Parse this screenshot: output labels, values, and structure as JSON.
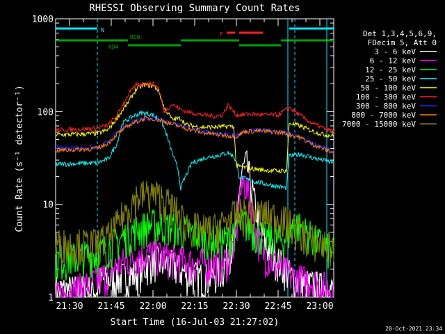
{
  "chart_data": {
    "type": "line",
    "title": "RHESSI Observing Summary Count Rates",
    "xlabel": "Start Time (16-Jul-03 21:27:02)",
    "ylabel": "Count Rate (s⁻¹ detector⁻¹)",
    "yscale": "log",
    "ylim": [
      1,
      1000
    ],
    "xlim_minutes": [
      -2,
      98
    ],
    "x_unit": "minutes after 21:27:02",
    "x_ticks": [
      {
        "min": 3,
        "label": "21:30"
      },
      {
        "min": 18,
        "label": "21:45"
      },
      {
        "min": 33,
        "label": "22:00"
      },
      {
        "min": 48,
        "label": "22:15"
      },
      {
        "min": 63,
        "label": "22:30"
      },
      {
        "min": 78,
        "label": "22:45"
      },
      {
        "min": 93,
        "label": "23:00"
      }
    ],
    "y_ticks": [
      {
        "v": 1,
        "label": "1"
      },
      {
        "v": 10,
        "label": "10"
      },
      {
        "v": 100,
        "label": "100"
      },
      {
        "v": 1000,
        "label": "1000"
      }
    ],
    "x_minor_step": 5,
    "footer_date": "20-Oct-2021 23:34",
    "legend_header": [
      "Det 1,3,4,5,6,9,",
      "FDecim 5, Att 0"
    ],
    "flags": [
      {
        "label": "N",
        "color": "#00e8ff",
        "level": 0,
        "segments": [
          [
            -2,
            13
          ],
          [
            82,
            98
          ]
        ]
      },
      {
        "label": "F",
        "color": "#ff2020",
        "level": 1,
        "segments": [
          [
            59.5,
            62.5
          ],
          [
            64,
            72.5
          ]
        ]
      },
      {
        "label": "RD0",
        "color": "#00a000",
        "level": 2,
        "segments": [
          [
            -2,
            24
          ],
          [
            43,
            64
          ],
          [
            79,
            98
          ]
        ]
      },
      {
        "label": "RD4",
        "color": "#00a000",
        "level": 3,
        "segments": [
          [
            24,
            43
          ],
          [
            64,
            79
          ]
        ]
      }
    ],
    "saa_lines_min": [
      13,
      84
    ],
    "orbit_edges_min": [
      81.5,
      95.5
    ],
    "series": [
      {
        "name": "3 - 6 keV",
        "color": "#ffffff",
        "points": [
          [
            -2,
            1.2
          ],
          [
            13,
            1.2
          ],
          [
            14,
            1.5
          ],
          [
            20,
            1.6
          ],
          [
            27,
            1.8
          ],
          [
            33,
            2.5
          ],
          [
            40,
            2.2
          ],
          [
            45,
            1.8
          ],
          [
            52,
            1.6
          ],
          [
            58,
            2.0
          ],
          [
            63,
            5.0
          ],
          [
            64,
            15
          ],
          [
            65,
            22
          ],
          [
            66.5,
            28
          ],
          [
            68,
            18
          ],
          [
            70,
            9
          ],
          [
            72,
            5
          ],
          [
            74,
            3.5
          ],
          [
            78,
            2.5
          ],
          [
            84,
            1.5
          ],
          [
            98,
            1.2
          ]
        ]
      },
      {
        "name": "6 - 12 keV",
        "color": "#ff00ff",
        "points": [
          [
            -2,
            1.0
          ],
          [
            13,
            1.5
          ],
          [
            20,
            2.2
          ],
          [
            27,
            2.8
          ],
          [
            33,
            3.0
          ],
          [
            40,
            2.6
          ],
          [
            47,
            2.4
          ],
          [
            55,
            2.3
          ],
          [
            60,
            2.6
          ],
          [
            63,
            4.5
          ],
          [
            64,
            12
          ],
          [
            66,
            18
          ],
          [
            68,
            11
          ],
          [
            70,
            5
          ],
          [
            73,
            3.0
          ],
          [
            78,
            2.2
          ],
          [
            84,
            1.6
          ],
          [
            90,
            1.5
          ],
          [
            98,
            1.2
          ]
        ]
      },
      {
        "name": "12 - 25 keV",
        "color": "#00ff00",
        "points": [
          [
            -2,
            2.5
          ],
          [
            13,
            3.0
          ],
          [
            20,
            4.0
          ],
          [
            27,
            5.5
          ],
          [
            33,
            6.2
          ],
          [
            40,
            5.8
          ],
          [
            47,
            5.0
          ],
          [
            55,
            4.2
          ],
          [
            60,
            4.2
          ],
          [
            63,
            6.0
          ],
          [
            66,
            6.5
          ],
          [
            70,
            5.0
          ],
          [
            75,
            4.3
          ],
          [
            80,
            4.2
          ],
          [
            84,
            6.5
          ],
          [
            90,
            4.5
          ],
          [
            98,
            3.0
          ]
        ]
      },
      {
        "name": "25 - 50 keV",
        "color": "#00ffff",
        "points": [
          [
            -2,
            27
          ],
          [
            13,
            28
          ],
          [
            17,
            31
          ],
          [
            20,
            45
          ],
          [
            22,
            75
          ],
          [
            26,
            90
          ],
          [
            29,
            97
          ],
          [
            31,
            95
          ],
          [
            33,
            92
          ],
          [
            36,
            80
          ],
          [
            38,
            55
          ],
          [
            40,
            35
          ],
          [
            42,
            24
          ],
          [
            43,
            15
          ],
          [
            44,
            18
          ],
          [
            47,
            28
          ],
          [
            52,
            32
          ],
          [
            57,
            34
          ],
          [
            60,
            36
          ],
          [
            62,
            33
          ],
          [
            63,
            28
          ],
          [
            64,
            20
          ],
          [
            68,
            18
          ],
          [
            72,
            17
          ],
          [
            76,
            16
          ],
          [
            81,
            15
          ],
          [
            82,
            33
          ],
          [
            86,
            35
          ],
          [
            90,
            32
          ],
          [
            94,
            30
          ],
          [
            98,
            28
          ]
        ]
      },
      {
        "name": "50 - 100 keV",
        "color": "#ffff00",
        "points": [
          [
            -2,
            56
          ],
          [
            13,
            58
          ],
          [
            17,
            64
          ],
          [
            20,
            85
          ],
          [
            24,
            125
          ],
          [
            27,
            175
          ],
          [
            30,
            195
          ],
          [
            33,
            190
          ],
          [
            35,
            170
          ],
          [
            37,
            110
          ],
          [
            40,
            82
          ],
          [
            43,
            85
          ],
          [
            45,
            72
          ],
          [
            50,
            68
          ],
          [
            55,
            68
          ],
          [
            59,
            69
          ],
          [
            62,
            70
          ],
          [
            63,
            26
          ],
          [
            66,
            25
          ],
          [
            70,
            24
          ],
          [
            76,
            23
          ],
          [
            81,
            23
          ],
          [
            82,
            75
          ],
          [
            86,
            70
          ],
          [
            90,
            62
          ],
          [
            94,
            57
          ],
          [
            98,
            55
          ]
        ]
      },
      {
        "name": "100 - 300 keV",
        "color": "#ff2020",
        "points": [
          [
            -2,
            63
          ],
          [
            13,
            66
          ],
          [
            17,
            72
          ],
          [
            20,
            90
          ],
          [
            24,
            150
          ],
          [
            27,
            195
          ],
          [
            30,
            200
          ],
          [
            33,
            200
          ],
          [
            35,
            180
          ],
          [
            37,
            100
          ],
          [
            40,
            120
          ],
          [
            43,
            105
          ],
          [
            45,
            100
          ],
          [
            50,
            93
          ],
          [
            55,
            89
          ],
          [
            58,
            92
          ],
          [
            60,
            118
          ],
          [
            62,
            100
          ],
          [
            63,
            92
          ],
          [
            68,
            94
          ],
          [
            73,
            92
          ],
          [
            78,
            92
          ],
          [
            82,
            110
          ],
          [
            84,
            100
          ],
          [
            90,
            75
          ],
          [
            95,
            65
          ],
          [
            98,
            61
          ]
        ]
      },
      {
        "name": "300 - 800 keV",
        "color": "#2020ff",
        "points": [
          [
            -2,
            40
          ],
          [
            13,
            41
          ],
          [
            17,
            48
          ],
          [
            20,
            60
          ],
          [
            24,
            72
          ],
          [
            27,
            80
          ],
          [
            30,
            85
          ],
          [
            33,
            85
          ],
          [
            36,
            82
          ],
          [
            40,
            75
          ],
          [
            45,
            68
          ],
          [
            50,
            62
          ],
          [
            55,
            58
          ],
          [
            60,
            56
          ],
          [
            63,
            55
          ],
          [
            66,
            62
          ],
          [
            70,
            63
          ],
          [
            75,
            62
          ],
          [
            80,
            60
          ],
          [
            85,
            55
          ],
          [
            90,
            46
          ],
          [
            95,
            40
          ],
          [
            98,
            37
          ]
        ]
      },
      {
        "name": "800 - 7000 keV",
        "color": "#ff8000",
        "points": [
          [
            -2,
            38
          ],
          [
            13,
            40
          ],
          [
            17,
            46
          ],
          [
            20,
            57
          ],
          [
            24,
            70
          ],
          [
            27,
            78
          ],
          [
            30,
            84
          ],
          [
            33,
            84
          ],
          [
            36,
            80
          ],
          [
            40,
            73
          ],
          [
            45,
            66
          ],
          [
            50,
            60
          ],
          [
            55,
            57
          ],
          [
            60,
            55
          ],
          [
            63,
            54
          ],
          [
            66,
            61
          ],
          [
            70,
            62
          ],
          [
            75,
            61
          ],
          [
            80,
            59
          ],
          [
            85,
            54
          ],
          [
            90,
            45
          ],
          [
            95,
            39
          ],
          [
            98,
            36
          ]
        ]
      },
      {
        "name": "7000 - 15000 keV",
        "color": "#808000",
        "points": [
          [
            -2,
            3.8
          ],
          [
            13,
            3.8
          ],
          [
            17,
            4.5
          ],
          [
            20,
            6.0
          ],
          [
            24,
            9.5
          ],
          [
            27,
            12
          ],
          [
            30,
            13
          ],
          [
            33,
            13
          ],
          [
            36,
            12
          ],
          [
            40,
            9.5
          ],
          [
            45,
            6.3
          ],
          [
            50,
            5.3
          ],
          [
            55,
            5.5
          ],
          [
            60,
            6.8
          ],
          [
            63,
            7.8
          ],
          [
            68,
            8.2
          ],
          [
            73,
            8.0
          ],
          [
            78,
            7.4
          ],
          [
            82,
            6.2
          ],
          [
            86,
            5.0
          ],
          [
            90,
            4.2
          ],
          [
            95,
            3.7
          ],
          [
            98,
            3.4
          ]
        ]
      }
    ]
  }
}
